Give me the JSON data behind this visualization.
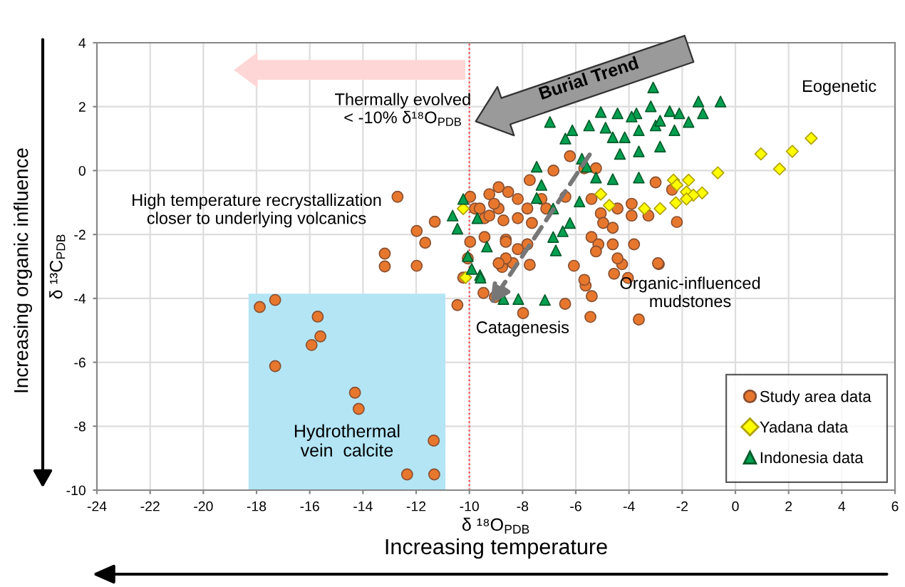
{
  "chart_data": {
    "type": "scatter",
    "xlabel": "δ ¹⁸O$_{PDB}$",
    "ylabel": "δ ¹³C$_{PDB}$",
    "xlim": [
      -24,
      6
    ],
    "ylim": [
      -10,
      4
    ],
    "xticks": [
      -24,
      -22,
      -20,
      -18,
      -16,
      -14,
      -12,
      -10,
      -8,
      -6,
      -4,
      -2,
      0,
      2,
      4,
      6
    ],
    "yticks": [
      -10,
      -8,
      -6,
      -4,
      -2,
      0,
      2,
      4
    ],
    "grid": true,
    "legend": "bottom right",
    "series": [
      {
        "name": "Study area data",
        "color": "#e8772e",
        "marker": "circle",
        "x": [
          -17.88,
          -17.3,
          -15.7,
          -15.6,
          -15.93,
          -17.3,
          -14.3,
          -14.16,
          -11.34,
          -12.34,
          -11.32,
          -13.18,
          -11.98,
          -10.45,
          -13.18,
          -11.66,
          -11.98,
          -11.3,
          -12.7,
          -6.07,
          -2.88,
          -4.56,
          -4.04,
          -5.63,
          -5.4,
          -6.4,
          -5.45,
          -3.63,
          -7.98,
          -9.04,
          -9.47,
          -8.77,
          -7.73,
          -4.26,
          -6.22,
          -5.68,
          -5.24,
          -6.84,
          -7.73,
          -8.9,
          -8.54,
          -9.25,
          -8.18,
          -7.29,
          -6.39,
          -5.41,
          -3.0,
          -2.38,
          -9.79,
          -8.9,
          -7.82,
          -7.11,
          -3.9,
          -9.43,
          -8.72,
          -8.18,
          -7.65,
          -5.06,
          -4.43,
          -3.27,
          -2.2,
          -4.97,
          -4.61,
          -3.9,
          -5.41,
          -8.63,
          -7.82,
          -8.18,
          -5.15,
          -4.61,
          -3.81,
          -8.36,
          -4.43,
          -2.91,
          -5.24,
          -5.68,
          -9.97,
          -9.61,
          -9.25,
          -8.63,
          -8.63,
          -8.9,
          -10.06,
          -9.97,
          -10.23,
          -9.07,
          -9.43
        ],
        "values": [
          -4.27,
          -4.05,
          -4.57,
          -5.19,
          -5.46,
          -6.12,
          -6.95,
          -7.46,
          -8.45,
          -9.51,
          -9.51,
          -3.0,
          -2.98,
          -4.21,
          -2.6,
          -2.26,
          -1.89,
          -1.6,
          -0.82,
          -2.98,
          -2.93,
          -3.23,
          -3.36,
          -3.6,
          -3.93,
          -4.17,
          -4.58,
          -4.66,
          -4.46,
          -3.96,
          -3.83,
          -3.02,
          -2.95,
          -2.93,
          0.45,
          0.07,
          0.07,
          0.0,
          -0.3,
          -0.52,
          -0.67,
          -0.74,
          -0.89,
          -0.89,
          -0.82,
          -0.89,
          -0.37,
          -0.6,
          -1.19,
          -1.19,
          -1.19,
          -1.19,
          -1.04,
          -1.49,
          -1.56,
          -1.49,
          -1.64,
          -1.34,
          -1.19,
          -1.41,
          -1.61,
          -1.64,
          -1.79,
          -1.41,
          -2.08,
          -2.16,
          -2.31,
          -2.46,
          -2.31,
          -2.31,
          -2.31,
          -2.9,
          -2.75,
          -2.9,
          -2.53,
          -3.42,
          -0.82,
          -1.19,
          -1.41,
          -2.23,
          -2.75,
          -2.9,
          -2.75,
          -2.23,
          -3.35,
          -1.04,
          -2.08
        ]
      },
      {
        "name": "Yadana data",
        "color": "#ffff00",
        "marker": "diamond",
        "x": [
          2.85,
          2.14,
          0.96,
          1.66,
          -0.66,
          -2.33,
          -1.76,
          -2.2,
          -1.84,
          -1.25,
          -1.58,
          -1.84,
          -5.06,
          -4.74,
          -3.42,
          -2.83,
          -2.24,
          -10.23,
          -10.14
        ],
        "values": [
          1.01,
          0.6,
          0.52,
          0.05,
          -0.07,
          -0.3,
          -0.3,
          -0.45,
          -0.67,
          -0.7,
          -0.77,
          -0.89,
          -0.74,
          -1.09,
          -1.19,
          -1.19,
          -1.01,
          -1.19,
          -3.35
        ]
      },
      {
        "name": "Indonesia data",
        "color": "#00a050",
        "marker": "triangle",
        "x": [
          -3.09,
          -0.56,
          -1.39,
          -6.97,
          -5.06,
          -4.43,
          -3.72,
          -2.47,
          -1.76,
          -5.5,
          -6.13,
          -6.39,
          -4.88,
          -4.61,
          -4.16,
          -3.63,
          -3.0,
          -2.29,
          -2.83,
          -3.63,
          -4.34,
          -7.47,
          -5.77,
          -5.59,
          -5.24,
          -4.61,
          -3.63,
          -7.29,
          -7.47,
          -5.86,
          -6.85,
          -6.22,
          -6.49,
          -6.85,
          -6.75,
          -9.34,
          -9.7,
          -9.6,
          -10.23,
          -10.63,
          -10.45,
          -10.06,
          -9.91,
          -8.72,
          -8.16,
          -7.16,
          -9.58,
          -3.9,
          -3.18,
          -2.11,
          -1.22,
          -2.83
        ],
        "values": [
          2.6,
          2.16,
          2.16,
          1.52,
          1.83,
          1.79,
          1.79,
          1.86,
          1.52,
          1.41,
          1.26,
          1.0,
          1.34,
          1.04,
          1.04,
          1.26,
          1.41,
          1.26,
          0.75,
          0.6,
          0.52,
          0.12,
          0.37,
          0.12,
          -0.22,
          -0.27,
          -0.22,
          -0.45,
          -0.86,
          -0.97,
          -1.19,
          -1.64,
          -1.9,
          -2.08,
          -2.5,
          -2.38,
          -1.49,
          -3.27,
          -0.89,
          -1.41,
          -1.82,
          -2.68,
          -3.08,
          -4.02,
          -4.02,
          -4.05,
          -3.35,
          1.69,
          2.01,
          1.79,
          1.79,
          1.56
        ]
      }
    ],
    "ref_lines": [
      {
        "axis": "x",
        "value": -10,
        "label": null,
        "color": "#ff4040",
        "line_style": "dotted"
      }
    ],
    "bands": [
      {
        "axis": "x",
        "from": -18.3,
        "to": -10.9,
        "label": "Hydrothermal\nvein  calcite",
        "color": "#b3e5f5"
      }
    ],
    "annotations": [
      "Thermally evolved\n< -10% δ¹⁸O$_{PDB}$",
      "Burial Trend",
      "Eogenetic",
      "High temperature recrystallization\ncloser to underlying volcanics",
      "Organic-influenced\nmudstones",
      {
        "text": "Catagenesis",
        "x": -9.3,
        "y": -4.3
      },
      "Increasing organic influence",
      "Increasing temperature"
    ]
  }
}
